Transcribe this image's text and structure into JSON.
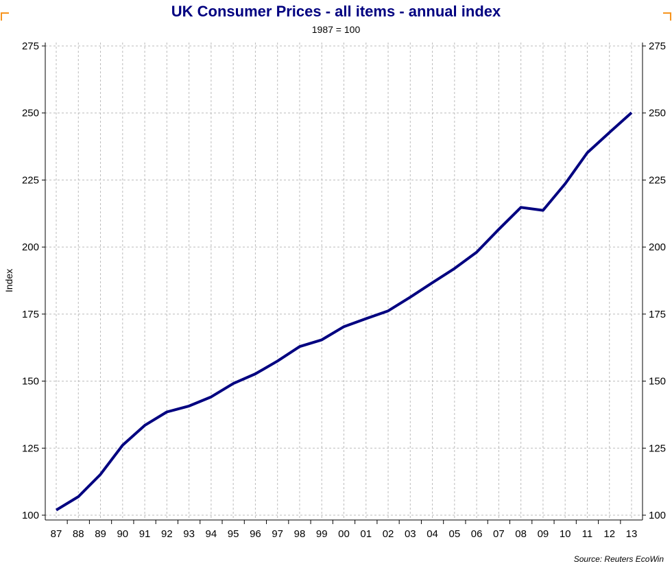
{
  "chart": {
    "title": "UK Consumer Prices - all items - annual index",
    "subtitle": "1987 = 100",
    "source": "Source: Reuters EcoWin",
    "line_color": "#000080",
    "title_color": "#000080",
    "grid_color": "#bbbbbb",
    "corner_color": "#f7941d"
  },
  "chart_data": {
    "type": "line",
    "title": "UK Consumer Prices - all items - annual index",
    "subtitle": "1987 = 100",
    "xlabel": "",
    "ylabel": "Index",
    "ylim": [
      100,
      275
    ],
    "yticks": [
      100,
      125,
      150,
      175,
      200,
      225,
      250,
      275
    ],
    "y_axis_right": true,
    "grid": true,
    "categories": [
      "87",
      "88",
      "89",
      "90",
      "91",
      "92",
      "93",
      "94",
      "95",
      "96",
      "97",
      "98",
      "99",
      "00",
      "01",
      "02",
      "03",
      "04",
      "05",
      "06",
      "07",
      "08",
      "09",
      "10",
      "11",
      "12",
      "13"
    ],
    "values": [
      101.9,
      106.9,
      115.2,
      126.1,
      133.5,
      138.5,
      140.7,
      144.1,
      149.1,
      152.7,
      157.5,
      162.9,
      165.4,
      170.3,
      173.3,
      176.2,
      181.3,
      186.7,
      192.0,
      198.1,
      206.6,
      214.8,
      213.7,
      223.6,
      235.2,
      242.7,
      250.1
    ],
    "series_color": "#000080"
  }
}
